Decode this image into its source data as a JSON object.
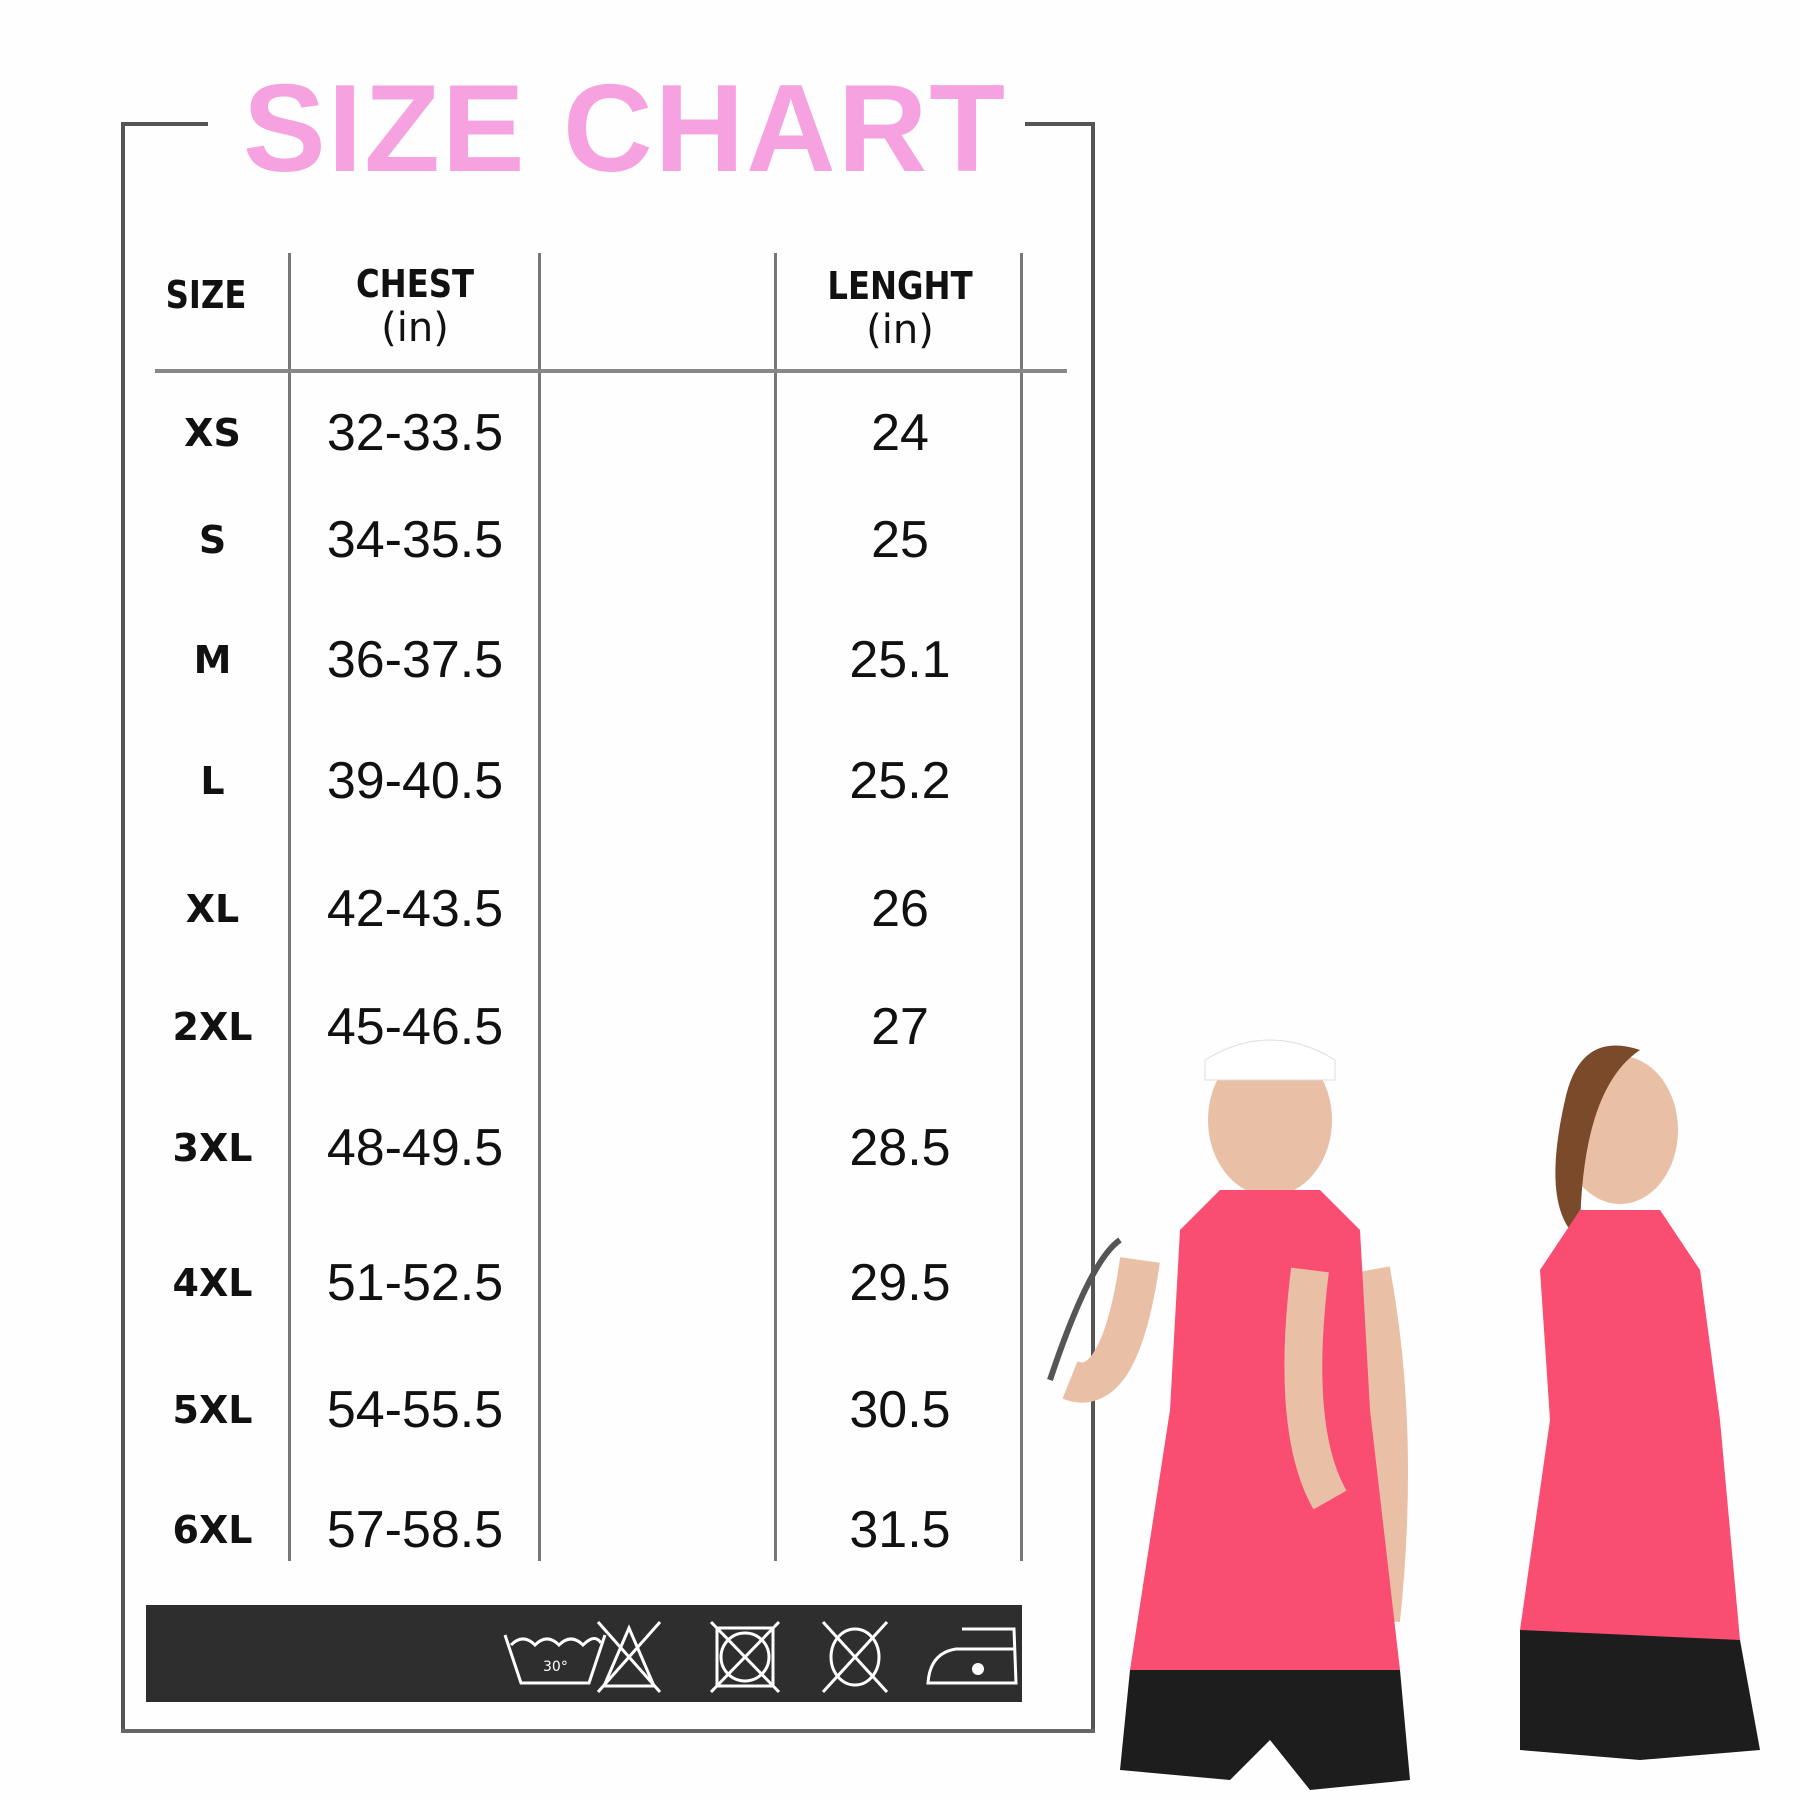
{
  "title": "SIZE CHART",
  "colors": {
    "title": "#f7a2e0",
    "band": "#2e2e2e",
    "shirt": "#f94d72"
  },
  "table": {
    "headers": {
      "size": "SIZE",
      "chest": "CHEST",
      "chest_unit": "(in)",
      "length": "LENGHT",
      "length_unit": "(in)"
    },
    "rows": [
      {
        "size": "XS",
        "chest": "32-33.5",
        "length": "24"
      },
      {
        "size": "S",
        "chest": "34-35.5",
        "length": "25"
      },
      {
        "size": "M",
        "chest": "36-37.5",
        "length": "25.1"
      },
      {
        "size": "L",
        "chest": "39-40.5",
        "length": "25.2"
      },
      {
        "size": "XL",
        "chest": "42-43.5",
        "length": "26"
      },
      {
        "size": "2XL",
        "chest": "45-46.5",
        "length": "27"
      },
      {
        "size": "3XL",
        "chest": "48-49.5",
        "length": "28.5"
      },
      {
        "size": "4XL",
        "chest": "51-52.5",
        "length": "29.5"
      },
      {
        "size": "5XL",
        "chest": "54-55.5",
        "length": "30.5"
      },
      {
        "size": "6XL",
        "chest": "57-58.5",
        "length": "31.5"
      }
    ]
  },
  "care_icons": [
    {
      "icon": "wash-30-icon",
      "label": "30°"
    },
    {
      "icon": "do-not-bleach-icon"
    },
    {
      "icon": "do-not-tumble-dry-icon"
    },
    {
      "icon": "do-not-dry-clean-icon"
    },
    {
      "icon": "iron-low-icon"
    }
  ]
}
